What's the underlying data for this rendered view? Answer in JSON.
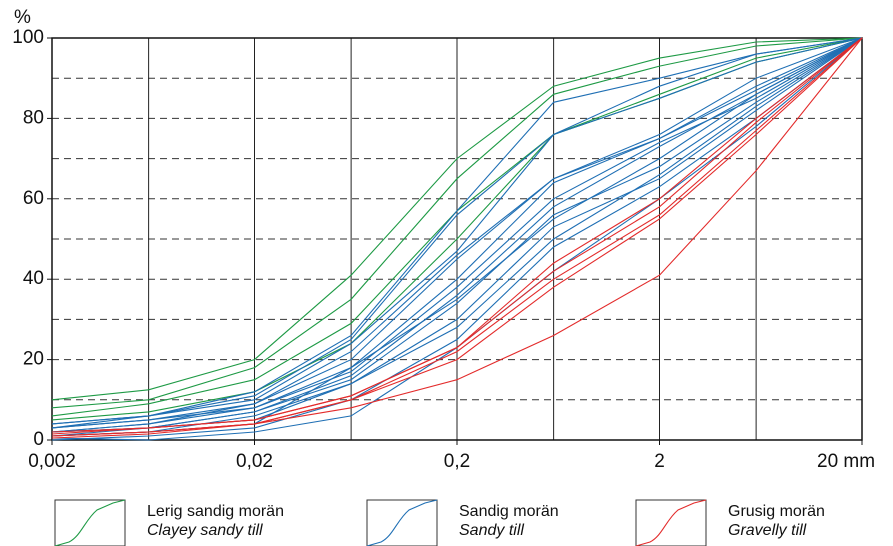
{
  "chart_data": {
    "type": "line",
    "y_label": "%",
    "log_x": true,
    "xlim": [
      0.002,
      20
    ],
    "ylim": [
      0,
      100
    ],
    "x": [
      0.002,
      0.006,
      0.02,
      0.06,
      0.2,
      0.6,
      2,
      6,
      20
    ],
    "xticks": [
      {
        "value": 0.002,
        "label": "0,002"
      },
      {
        "value": 0.02,
        "label": "0,02"
      },
      {
        "value": 0.2,
        "label": "0,2"
      },
      2,
      {
        "value": 20,
        "label": "20 mm"
      }
    ],
    "yticks": [
      0,
      20,
      40,
      60,
      80,
      100
    ],
    "ygrid": [
      10,
      20,
      30,
      40,
      50,
      60,
      70,
      80,
      90
    ],
    "series": [
      {
        "name": "Lerig sandig morän",
        "name_en": "Clayey sandy till",
        "color": "#1e9a45",
        "lines": [
          [
            10,
            12.5,
            20,
            41,
            70,
            88,
            95,
            99,
            100
          ],
          [
            8,
            10,
            18,
            35,
            65,
            86,
            93,
            98,
            100
          ],
          [
            6,
            9,
            15,
            29,
            57,
            76,
            86,
            95,
            100
          ],
          [
            5,
            7,
            12,
            24,
            50,
            76,
            85,
            94,
            100
          ]
        ]
      },
      {
        "name": "Sandig morän",
        "name_en": "Sandy till",
        "color": "#1f6fb4",
        "lines": [
          [
            4,
            6,
            12,
            26,
            57,
            84,
            90,
            96,
            100
          ],
          [
            3,
            6,
            11,
            25,
            56,
            76,
            85,
            94,
            100
          ],
          [
            4,
            6,
            10,
            24,
            47,
            76,
            88,
            96,
            100
          ],
          [
            3,
            5,
            9,
            22,
            46,
            65,
            76,
            90,
            100
          ],
          [
            2,
            4,
            9,
            20,
            45,
            65,
            75,
            88,
            100
          ],
          [
            3,
            5,
            8,
            18,
            40,
            64,
            75,
            87,
            100
          ],
          [
            2,
            4,
            8,
            17,
            38,
            60,
            74,
            85,
            100
          ],
          [
            2,
            3,
            7,
            16,
            36,
            58,
            73,
            86,
            100
          ],
          [
            1,
            3,
            7,
            15,
            34,
            56,
            68,
            84,
            100
          ],
          [
            1,
            2,
            6,
            14,
            30,
            53,
            65,
            82,
            100
          ],
          [
            2,
            3,
            5,
            14,
            28,
            50,
            66,
            83,
            100
          ],
          [
            0,
            1,
            3,
            10,
            25,
            48,
            63,
            80,
            100
          ],
          [
            0.5,
            0,
            2,
            6,
            23,
            42,
            60,
            78,
            100
          ],
          [
            1,
            2,
            4,
            18,
            35,
            55,
            70,
            86,
            100
          ]
        ]
      },
      {
        "name": "Grusig morän",
        "name_en": "Gravelly till",
        "color": "#e32b2b",
        "lines": [
          [
            2,
            3,
            5,
            11,
            23,
            44,
            60,
            80,
            100
          ],
          [
            1.5,
            3,
            5,
            11,
            23,
            42,
            58,
            79,
            100
          ],
          [
            1,
            2,
            4,
            10,
            22,
            40,
            56,
            77,
            100
          ],
          [
            1,
            2,
            4,
            10,
            20,
            38,
            55,
            76,
            100
          ],
          [
            0.5,
            1.5,
            4,
            8,
            15,
            26,
            41,
            67,
            100
          ]
        ]
      }
    ]
  }
}
